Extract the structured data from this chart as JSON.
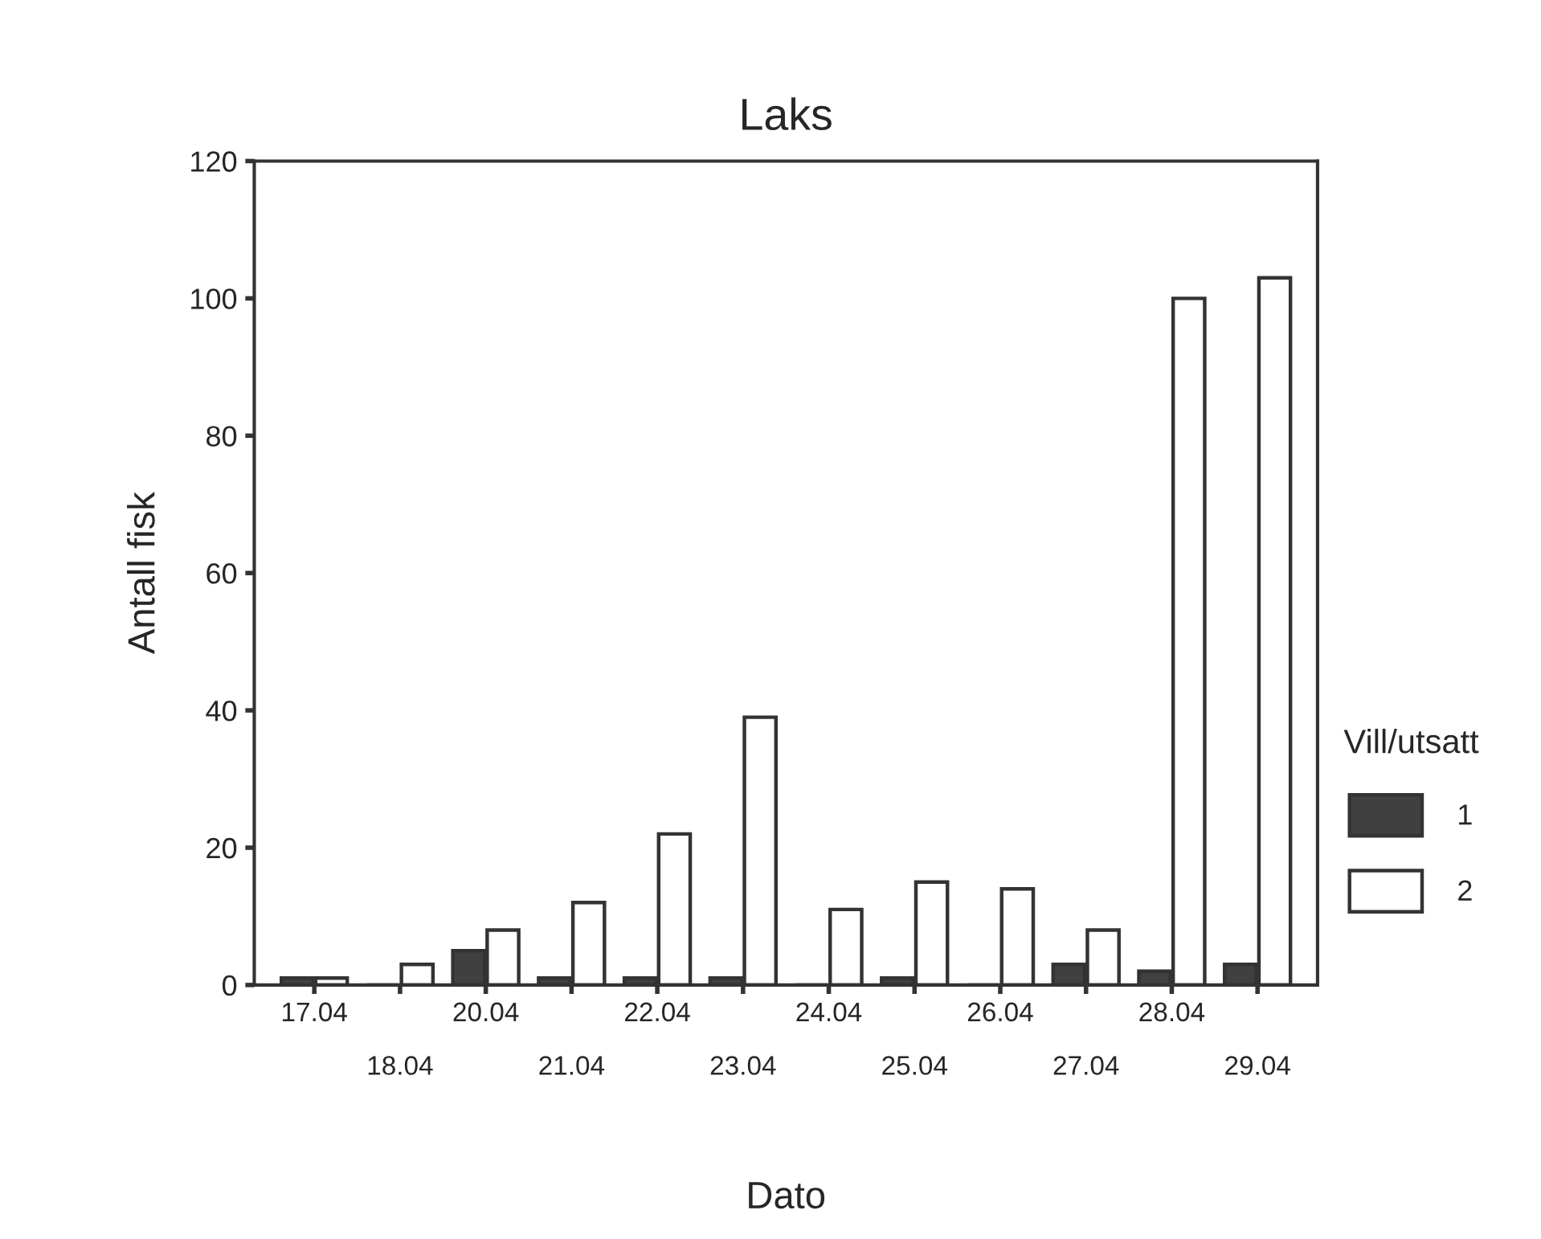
{
  "chart_data": {
    "type": "bar",
    "title": "Laks",
    "xlabel": "Dato",
    "ylabel": "Antall fisk",
    "legend_title": "Vill/utsatt",
    "categories": [
      "17.04",
      "18.04",
      "20.04",
      "21.04",
      "22.04",
      "23.04",
      "24.04",
      "25.04",
      "26.04",
      "27.04",
      "28.04",
      "29.04"
    ],
    "series": [
      {
        "name": "1",
        "color": "#404040",
        "values": [
          1,
          0,
          5,
          1,
          1,
          1,
          0,
          1,
          0,
          3,
          2,
          3
        ]
      },
      {
        "name": "2",
        "color": "#ffffff",
        "values": [
          1,
          3,
          8,
          12,
          22,
          39,
          11,
          15,
          14,
          8,
          100,
          103
        ]
      }
    ],
    "ylim": [
      0,
      120
    ],
    "yticks": [
      0,
      20,
      40,
      60,
      80,
      100,
      120
    ],
    "grid": false,
    "legend": "right"
  }
}
